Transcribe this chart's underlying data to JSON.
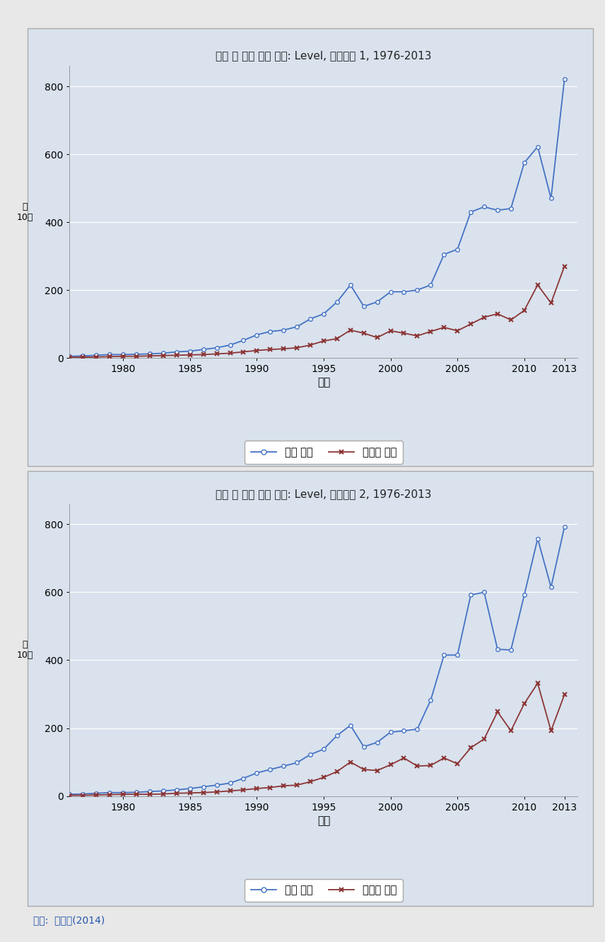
{
  "title1": "한국 대 세계 녹색 무역: Level, 시나리오 1, 1976-2013",
  "title2": "한국 대 세계 녹색 무역: Level, 시나리오 2, 1976-2013",
  "xlabel": "년도",
  "ylabel_line1": "폐",
  "ylabel_line2": "10억",
  "legend_green": "녹색 무역",
  "legend_nongreen": "비녹색 무역",
  "source": "자료:  강성진(2014)",
  "years": [
    1976,
    1977,
    1978,
    1979,
    1980,
    1981,
    1982,
    1983,
    1984,
    1985,
    1986,
    1987,
    1988,
    1989,
    1990,
    1991,
    1992,
    1993,
    1994,
    1995,
    1996,
    1997,
    1998,
    1999,
    2000,
    2001,
    2002,
    2003,
    2004,
    2005,
    2006,
    2007,
    2008,
    2009,
    2010,
    2011,
    2012,
    2013
  ],
  "s1_green": [
    5,
    6,
    8,
    10,
    10,
    11,
    12,
    14,
    18,
    20,
    25,
    30,
    38,
    52,
    68,
    78,
    82,
    92,
    115,
    130,
    165,
    215,
    152,
    165,
    195,
    195,
    200,
    215,
    305,
    320,
    430,
    445,
    435,
    440,
    575,
    622,
    470,
    820
  ],
  "s1_nongreen": [
    2,
    2,
    3,
    4,
    5,
    5,
    6,
    7,
    8,
    9,
    10,
    12,
    14,
    18,
    22,
    25,
    27,
    30,
    38,
    50,
    57,
    82,
    73,
    60,
    80,
    73,
    65,
    78,
    90,
    80,
    100,
    120,
    130,
    112,
    140,
    215,
    162,
    270
  ],
  "s2_green": [
    5,
    6,
    8,
    10,
    10,
    11,
    13,
    15,
    18,
    22,
    27,
    32,
    38,
    52,
    68,
    78,
    88,
    98,
    122,
    138,
    178,
    208,
    145,
    158,
    188,
    192,
    197,
    282,
    415,
    415,
    592,
    600,
    432,
    430,
    592,
    758,
    615,
    792
  ],
  "s2_nongreen": [
    2,
    2,
    3,
    4,
    5,
    5,
    5,
    6,
    8,
    9,
    10,
    12,
    15,
    18,
    22,
    25,
    30,
    32,
    42,
    55,
    72,
    100,
    78,
    75,
    92,
    112,
    88,
    90,
    112,
    95,
    142,
    168,
    248,
    192,
    272,
    332,
    192,
    298
  ],
  "panel_bg": "#d9e2ed",
  "outer_bg": "#e8e8e8",
  "green_color": "#4472c4",
  "nongreen_color": "#8b3535",
  "source_color": "#2255aa",
  "title_color": "#222222",
  "ylim": [
    0,
    860
  ],
  "yticks": [
    0,
    200,
    400,
    600,
    800
  ],
  "xticks": [
    1980,
    1985,
    1990,
    1995,
    2000,
    2005,
    2010,
    2013
  ],
  "xlim_left": 1976,
  "xlim_right": 2014
}
